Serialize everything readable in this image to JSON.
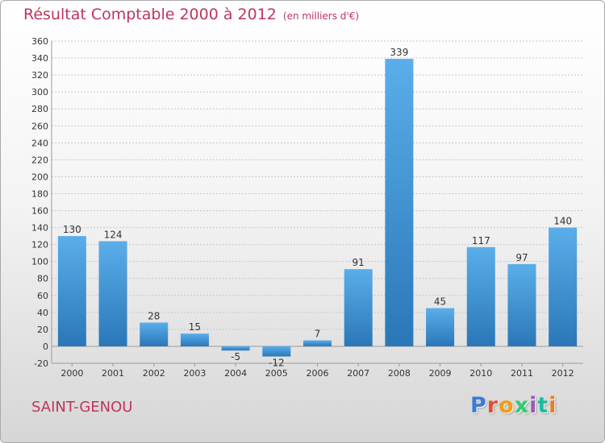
{
  "header": {
    "title": "Résultat Comptable 2000 à 2012",
    "subtitle": "(en milliers d'€)"
  },
  "footer": {
    "town": "SAINT-GENOU",
    "logo_text": "Proxiti",
    "logo_colors": [
      "#3a7bd5",
      "#e74c3c",
      "#f39c12",
      "#2ecc71",
      "#9b59b6",
      "#1abc9c",
      "#e67e22"
    ]
  },
  "colors": {
    "bar_top": "#5aaeea",
    "bar_bottom": "#2a77b8",
    "title": "#c0355a",
    "grid": "#c8c8c8"
  },
  "chart_data": {
    "type": "bar",
    "categories": [
      "2000",
      "2001",
      "2002",
      "2003",
      "2004",
      "2005",
      "2006",
      "2007",
      "2008",
      "2009",
      "2010",
      "2011",
      "2012"
    ],
    "values": [
      130,
      124,
      28,
      15,
      -5,
      -12,
      7,
      91,
      339,
      45,
      117,
      97,
      140
    ],
    "value_labels": [
      "130",
      "124",
      "28",
      "15",
      "-5",
      "-12",
      "7",
      "91",
      "339",
      "45",
      "117",
      "97",
      "140"
    ],
    "ylim": [
      -20,
      360
    ],
    "ytick_step": 20,
    "yticks": [
      "-20",
      "0",
      "20",
      "40",
      "60",
      "80",
      "100",
      "120",
      "140",
      "160",
      "180",
      "200",
      "220",
      "240",
      "260",
      "280",
      "300",
      "320",
      "340",
      "360"
    ],
    "grid": true,
    "xlabel": "",
    "ylabel": ""
  }
}
